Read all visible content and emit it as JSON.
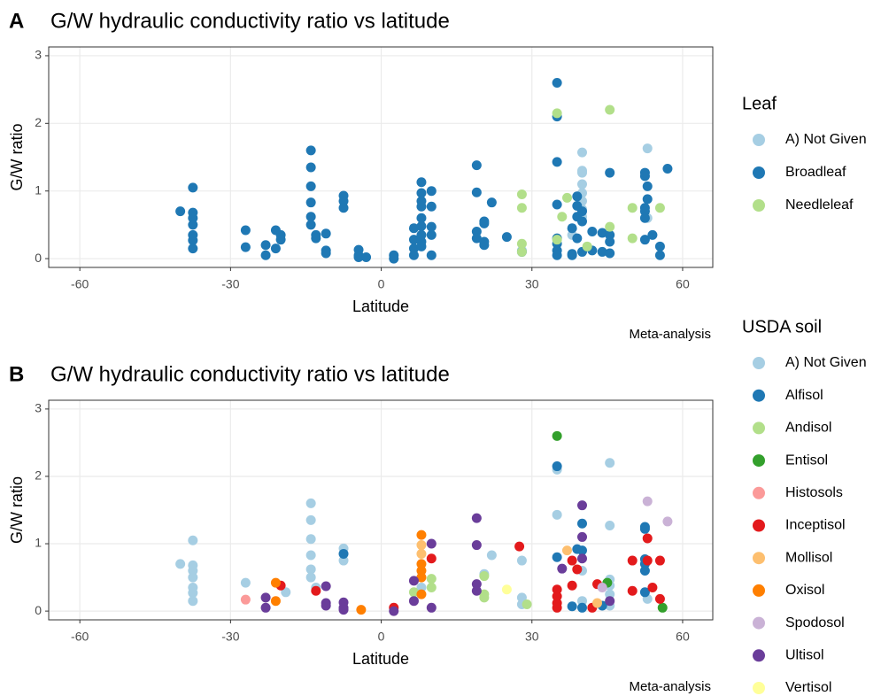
{
  "chart_data": [
    {
      "type": "scatter",
      "label": "A",
      "title": "G/W hydraulic conductivity ratio vs latitude",
      "xlabel": "Latitude",
      "ylabel": "G/W ratio",
      "caption": "Meta-analysis",
      "legend_title": "Leaf",
      "grid": true,
      "xlim": [
        -66.2,
        66
      ],
      "ylim": [
        -0.13,
        3.13
      ],
      "xticks": [
        -60,
        -30,
        0,
        30,
        60
      ],
      "yticks": [
        0,
        1,
        2,
        3
      ],
      "series": [
        {
          "name": "A) Not Given",
          "color": "#a6cee3",
          "x": [
            38,
            40,
            40,
            40,
            40,
            40,
            40,
            40,
            40,
            53,
            53,
            28
          ],
          "y": [
            0.35,
            1.57,
            1.3,
            1.27,
            1.1,
            0.97,
            0.85,
            0.73,
            0.62,
            1.63,
            0.6,
            0.12
          ]
        },
        {
          "name": "Broadleaf",
          "color": "#1f78b4",
          "x": [
            -40,
            -37.5,
            -37.5,
            -37.5,
            -37.5,
            -37.5,
            -37.5,
            -37.5,
            -27,
            -27,
            -23,
            -23,
            -21,
            -21,
            -20,
            -20,
            -14,
            -14,
            -14,
            -14,
            -14,
            -14,
            -13,
            -13,
            -11,
            -11,
            -11,
            -7.5,
            -7.5,
            -7.5,
            -4.5,
            -4.5,
            -4.5,
            -3,
            2.5,
            2.5,
            6.5,
            6.5,
            6.5,
            6.5,
            8,
            8,
            8,
            8,
            8,
            8,
            8,
            8,
            8,
            10,
            10,
            10,
            10,
            10,
            19,
            19,
            19,
            19,
            20.5,
            20.5,
            20.5,
            20.5,
            22,
            25,
            28,
            35,
            35,
            35,
            35,
            35,
            35,
            35,
            35,
            38,
            38,
            38,
            39,
            39,
            39,
            39,
            40,
            40,
            40,
            42,
            42,
            44,
            44,
            45.5,
            45.5,
            45.5,
            45.5,
            52.5,
            52.5,
            52.5,
            52.5,
            52.5,
            52.5,
            53,
            53,
            54,
            55.5,
            55.5,
            57
          ],
          "y": [
            0.7,
            1.05,
            0.68,
            0.6,
            0.5,
            0.35,
            0.27,
            0.15,
            0.42,
            0.17,
            0.2,
            0.05,
            0.42,
            0.15,
            0.35,
            0.28,
            1.6,
            1.35,
            1.07,
            0.83,
            0.62,
            0.5,
            0.35,
            0.3,
            0.37,
            0.12,
            0.08,
            0.93,
            0.85,
            0.75,
            0.13,
            0.05,
            0.02,
            0.02,
            0.05,
            0.0,
            0.28,
            0.45,
            0.15,
            0.05,
            1.13,
            0.97,
            0.85,
            0.77,
            0.6,
            0.48,
            0.35,
            0.25,
            0.18,
            1.0,
            0.77,
            0.47,
            0.35,
            0.05,
            1.38,
            0.98,
            0.4,
            0.3,
            0.55,
            0.52,
            0.25,
            0.2,
            0.83,
            0.32,
            0.1,
            2.6,
            2.1,
            1.43,
            0.8,
            0.3,
            0.22,
            0.12,
            0.05,
            0.45,
            0.07,
            0.05,
            0.92,
            0.78,
            0.62,
            0.3,
            0.7,
            0.55,
            0.1,
            0.4,
            0.12,
            0.38,
            0.1,
            1.27,
            0.35,
            0.25,
            0.08,
            1.27,
            1.22,
            0.75,
            0.7,
            0.6,
            0.28,
            1.07,
            0.88,
            0.35,
            0.18,
            0.05,
            1.33
          ]
        },
        {
          "name": "Needleleaf",
          "color": "#b2df8a",
          "x": [
            28,
            28,
            28,
            28,
            35,
            35,
            36,
            37,
            41,
            45.5,
            45.5,
            50,
            50,
            55.5
          ],
          "y": [
            0.95,
            0.75,
            0.22,
            0.1,
            2.15,
            0.28,
            0.62,
            0.9,
            0.18,
            2.2,
            0.47,
            0.75,
            0.3,
            0.75
          ]
        }
      ]
    },
    {
      "type": "scatter",
      "label": "B",
      "title": "G/W hydraulic conductivity ratio vs latitude",
      "xlabel": "Latitude",
      "ylabel": "G/W ratio",
      "caption": "Meta-analysis",
      "legend_title": "USDA soil",
      "grid": true,
      "xlim": [
        -66.2,
        66
      ],
      "ylim": [
        -0.13,
        3.13
      ],
      "xticks": [
        -60,
        -30,
        0,
        30,
        60
      ],
      "yticks": [
        0,
        1,
        2,
        3
      ],
      "series": [
        {
          "name": "A) Not Given",
          "color": "#a6cee3",
          "x": [
            -40,
            -37.5,
            -37.5,
            -37.5,
            -37.5,
            -37.5,
            -37.5,
            -37.5,
            -27,
            -14,
            -14,
            -14,
            -14,
            -14,
            -14,
            -13,
            -7.5,
            -7.5,
            -19,
            8,
            20.5,
            22,
            28,
            28,
            28,
            35,
            35,
            40,
            40,
            45.5,
            45.5,
            45.5,
            45.5,
            45.5,
            45.5,
            53
          ],
          "y": [
            0.7,
            1.05,
            0.68,
            0.6,
            0.5,
            0.35,
            0.27,
            0.15,
            0.42,
            1.6,
            1.35,
            1.07,
            0.83,
            0.62,
            0.5,
            0.35,
            0.93,
            0.75,
            0.28,
            0.35,
            0.55,
            0.83,
            0.75,
            0.2,
            0.1,
            2.1,
            1.43,
            0.6,
            0.15,
            2.2,
            1.27,
            0.47,
            0.38,
            0.25,
            0.08,
            0.18
          ]
        },
        {
          "name": "Alfisol",
          "color": "#1f78b4",
          "x": [
            -7.5,
            35,
            35,
            38,
            39,
            40,
            40,
            40,
            44,
            52.5,
            52.5,
            52.5,
            52.5,
            52.5,
            52.5
          ],
          "y": [
            0.85,
            2.15,
            0.8,
            0.07,
            0.92,
            1.3,
            0.9,
            0.05,
            0.08,
            1.25,
            1.22,
            0.77,
            0.7,
            0.6,
            0.28
          ]
        },
        {
          "name": "Andisol",
          "color": "#b2df8a",
          "x": [
            6.5,
            10,
            10,
            20.5,
            20.5,
            20.5,
            29
          ],
          "y": [
            0.28,
            0.35,
            0.48,
            0.52,
            0.25,
            0.2,
            0.1
          ]
        },
        {
          "name": "Entisol",
          "color": "#33a02c",
          "x": [
            35,
            45,
            56
          ],
          "y": [
            2.6,
            0.42,
            0.05
          ]
        },
        {
          "name": "Histosols",
          "color": "#fb9a99",
          "x": [
            -27
          ],
          "y": [
            0.17
          ]
        },
        {
          "name": "Inceptisol",
          "color": "#e31a1c",
          "x": [
            -20,
            -13,
            2.5,
            10,
            27.5,
            35,
            35,
            35,
            35,
            38,
            38,
            39,
            42,
            43,
            50,
            50,
            53,
            53,
            54,
            55.5,
            55.5
          ],
          "y": [
            0.38,
            0.3,
            0.05,
            0.78,
            0.96,
            0.32,
            0.22,
            0.12,
            0.05,
            0.75,
            0.38,
            0.62,
            0.05,
            0.4,
            0.75,
            0.3,
            1.08,
            0.75,
            0.35,
            0.75,
            0.18
          ]
        },
        {
          "name": "Mollisol",
          "color": "#fdbf6f",
          "x": [
            8,
            8,
            37,
            43
          ],
          "y": [
            0.98,
            0.85,
            0.9,
            0.12
          ]
        },
        {
          "name": "Oxisol",
          "color": "#ff7f00",
          "x": [
            -21,
            -21,
            -4,
            8,
            8,
            8,
            8,
            8
          ],
          "y": [
            0.42,
            0.15,
            0.02,
            1.13,
            0.7,
            0.6,
            0.5,
            0.25
          ]
        },
        {
          "name": "Spodosol",
          "color": "#cab2d6",
          "x": [
            44,
            53,
            57
          ],
          "y": [
            0.35,
            1.63,
            1.33
          ]
        },
        {
          "name": "Ultisol",
          "color": "#6a3d9a",
          "x": [
            -23,
            -23,
            -11,
            -11,
            -11,
            -7.5,
            -7.5,
            -7.5,
            2.5,
            6.5,
            6.5,
            10,
            10,
            19,
            19,
            19,
            19,
            36,
            40,
            40,
            40,
            45.5
          ],
          "y": [
            0.2,
            0.05,
            0.37,
            0.12,
            0.08,
            0.13,
            0.05,
            0.02,
            0.0,
            0.45,
            0.15,
            1.0,
            0.05,
            1.38,
            0.98,
            0.4,
            0.3,
            0.63,
            1.57,
            1.1,
            0.78,
            0.15
          ]
        },
        {
          "name": "Vertisol",
          "color": "#ffff99",
          "x": [
            25
          ],
          "y": [
            0.32
          ]
        }
      ]
    }
  ]
}
